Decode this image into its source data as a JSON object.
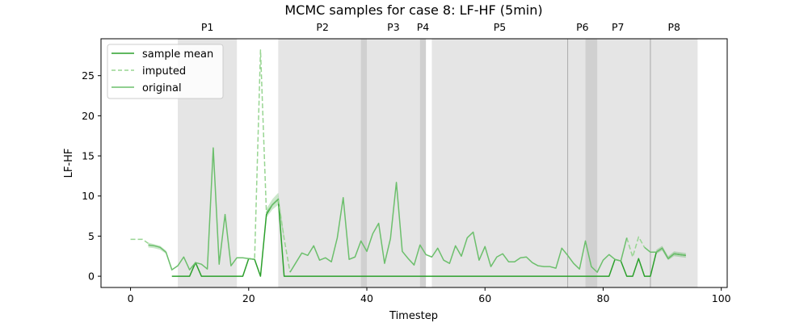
{
  "chart_data": {
    "type": "line",
    "title": "MCMC samples for case 8: LF-HF (5min)",
    "xlabel": "Timestep",
    "ylabel": "LF-HF",
    "xlim": [
      -5,
      101
    ],
    "ylim": [
      -1.4,
      29.6
    ],
    "xticks": [
      0,
      20,
      40,
      60,
      80,
      100
    ],
    "yticks": [
      0,
      5,
      10,
      15,
      20,
      25
    ],
    "grid": false,
    "legend_position": "top-left",
    "colors": {
      "sample_mean": "#2ca02c",
      "imputed": "#98d592",
      "original": "#6cbf6c",
      "phase_shade": "#e5e5e5",
      "overlap_shade": "#cccccc",
      "ci_band": "#2ca02c"
    },
    "phases": [
      {
        "label": "P1",
        "start": 8,
        "end": 18
      },
      {
        "label": "P2",
        "start": 25,
        "end": 40
      },
      {
        "label": "P3",
        "start": 39,
        "end": 50
      },
      {
        "label": "P4",
        "start": 49,
        "end": 50
      },
      {
        "label": "P5",
        "start": 51,
        "end": 74
      },
      {
        "label": "P6",
        "start": 74,
        "end": 79
      },
      {
        "label": "P7",
        "start": 77,
        "end": 88
      },
      {
        "label": "P8",
        "start": 88,
        "end": 96
      }
    ],
    "phase_dividers": [
      74,
      88
    ],
    "series": [
      {
        "name": "sample mean",
        "style": "solid",
        "segments": [
          [
            [
              7,
              0
            ],
            [
              8,
              0
            ],
            [
              9,
              0
            ],
            [
              10,
              0
            ],
            [
              11,
              1.7
            ],
            [
              12,
              0
            ],
            [
              13,
              0
            ],
            [
              14,
              0
            ],
            [
              15,
              0
            ],
            [
              16,
              0
            ],
            [
              17,
              0
            ],
            [
              18,
              0
            ],
            [
              19,
              0
            ],
            [
              20,
              2.2
            ],
            [
              21,
              2.1
            ],
            [
              22,
              0
            ],
            [
              23,
              7.7
            ],
            [
              24,
              8.9
            ],
            [
              25,
              9.6
            ],
            [
              26,
              0
            ],
            [
              30,
              0
            ],
            [
              40,
              0
            ],
            [
              50,
              0
            ],
            [
              60,
              0
            ],
            [
              70,
              0
            ],
            [
              80,
              0
            ],
            [
              81,
              0
            ],
            [
              82,
              2.1
            ],
            [
              83,
              1.9
            ],
            [
              84,
              0
            ],
            [
              85,
              0
            ],
            [
              86,
              2.2
            ],
            [
              87,
              0
            ],
            [
              88,
              0
            ],
            [
              89,
              3.0
            ],
            [
              90,
              3.5
            ],
            [
              91,
              2.2
            ],
            [
              92,
              2.8
            ],
            [
              93,
              2.7
            ],
            [
              94,
              2.6
            ]
          ]
        ]
      },
      {
        "name": "imputed",
        "style": "dashed",
        "segments": [
          [
            [
              0,
              4.6
            ],
            [
              1,
              4.6
            ],
            [
              2,
              4.6
            ],
            [
              3,
              4.1
            ]
          ],
          [
            [
              20,
              2.2
            ],
            [
              21,
              2.1
            ],
            [
              22,
              28.2
            ],
            [
              23,
              7.9
            ]
          ],
          [
            [
              25,
              9.6
            ],
            [
              26,
              4.7
            ],
            [
              27,
              0.5
            ]
          ],
          [
            [
              84,
              4.8
            ],
            [
              85,
              2.4
            ],
            [
              86,
              4.9
            ],
            [
              87,
              3.6
            ]
          ]
        ]
      },
      {
        "name": "original",
        "style": "solid",
        "segments": [
          [
            [
              3,
              3.9
            ],
            [
              4,
              3.8
            ],
            [
              5,
              3.6
            ],
            [
              6,
              3.0
            ],
            [
              7,
              0.8
            ],
            [
              8,
              1.3
            ],
            [
              9,
              2.4
            ],
            [
              10,
              0.8
            ],
            [
              11,
              1.7
            ],
            [
              12,
              1.5
            ],
            [
              13,
              0.9
            ],
            [
              14,
              16.0
            ],
            [
              15,
              1.5
            ],
            [
              16,
              7.7
            ],
            [
              17,
              1.3
            ],
            [
              18,
              2.3
            ],
            [
              19,
              2.3
            ],
            [
              20,
              2.2
            ],
            [
              21,
              2.1
            ]
          ],
          [
            [
              23,
              7.9
            ],
            [
              24,
              8.9
            ],
            [
              25,
              9.6
            ]
          ],
          [
            [
              27,
              0.5
            ],
            [
              28,
              1.7
            ],
            [
              29,
              2.9
            ],
            [
              30,
              2.6
            ],
            [
              31,
              3.8
            ],
            [
              32,
              2.0
            ],
            [
              33,
              2.3
            ],
            [
              34,
              1.8
            ],
            [
              35,
              4.8
            ],
            [
              36,
              9.8
            ],
            [
              37,
              2.1
            ],
            [
              38,
              2.4
            ],
            [
              39,
              4.4
            ],
            [
              40,
              3.1
            ],
            [
              41,
              5.3
            ],
            [
              42,
              6.6
            ],
            [
              43,
              1.6
            ],
            [
              44,
              4.7
            ],
            [
              45,
              11.7
            ],
            [
              46,
              3.1
            ],
            [
              47,
              2.2
            ],
            [
              48,
              1.4
            ],
            [
              49,
              3.9
            ],
            [
              50,
              2.7
            ],
            [
              51,
              2.4
            ],
            [
              52,
              3.5
            ],
            [
              53,
              2.0
            ],
            [
              54,
              1.6
            ],
            [
              55,
              3.8
            ],
            [
              56,
              2.5
            ],
            [
              57,
              4.8
            ],
            [
              58,
              5.5
            ],
            [
              59,
              2.0
            ],
            [
              60,
              3.7
            ],
            [
              61,
              1.2
            ],
            [
              62,
              2.4
            ],
            [
              63,
              2.8
            ],
            [
              64,
              1.8
            ],
            [
              65,
              1.8
            ],
            [
              66,
              2.3
            ],
            [
              67,
              2.4
            ],
            [
              68,
              1.7
            ],
            [
              69,
              1.3
            ],
            [
              70,
              1.2
            ],
            [
              71,
              1.2
            ],
            [
              72,
              1.0
            ],
            [
              73,
              3.5
            ],
            [
              74,
              2.6
            ],
            [
              75,
              1.6
            ],
            [
              76,
              0.9
            ],
            [
              77,
              4.4
            ],
            [
              78,
              1.2
            ],
            [
              79,
              0.5
            ],
            [
              80,
              2.0
            ],
            [
              81,
              2.7
            ],
            [
              82,
              2.1
            ],
            [
              83,
              1.9
            ],
            [
              84,
              4.8
            ]
          ],
          [
            [
              87,
              3.6
            ],
            [
              88,
              3.0
            ],
            [
              89,
              3.0
            ],
            [
              90,
              3.5
            ],
            [
              91,
              2.2
            ],
            [
              92,
              2.8
            ],
            [
              93,
              2.7
            ],
            [
              94,
              2.6
            ]
          ]
        ]
      }
    ],
    "ci_band": [
      [
        [
          3,
          3.6,
          4.2
        ],
        [
          4,
          3.5,
          4.0
        ],
        [
          5,
          3.3,
          3.8
        ],
        [
          6,
          2.8,
          3.2
        ],
        [
          7,
          0.6,
          1.0
        ]
      ],
      [
        [
          23,
          7.3,
          8.4
        ],
        [
          24,
          8.3,
          9.6
        ],
        [
          25,
          8.9,
          10.4
        ],
        [
          26,
          4.4,
          5.0
        ]
      ],
      [
        [
          89,
          2.8,
          3.3
        ],
        [
          90,
          3.2,
          3.8
        ],
        [
          91,
          2.0,
          2.5
        ],
        [
          92,
          2.5,
          3.1
        ],
        [
          93,
          2.4,
          3.0
        ],
        [
          94,
          2.3,
          2.9
        ]
      ]
    ]
  }
}
